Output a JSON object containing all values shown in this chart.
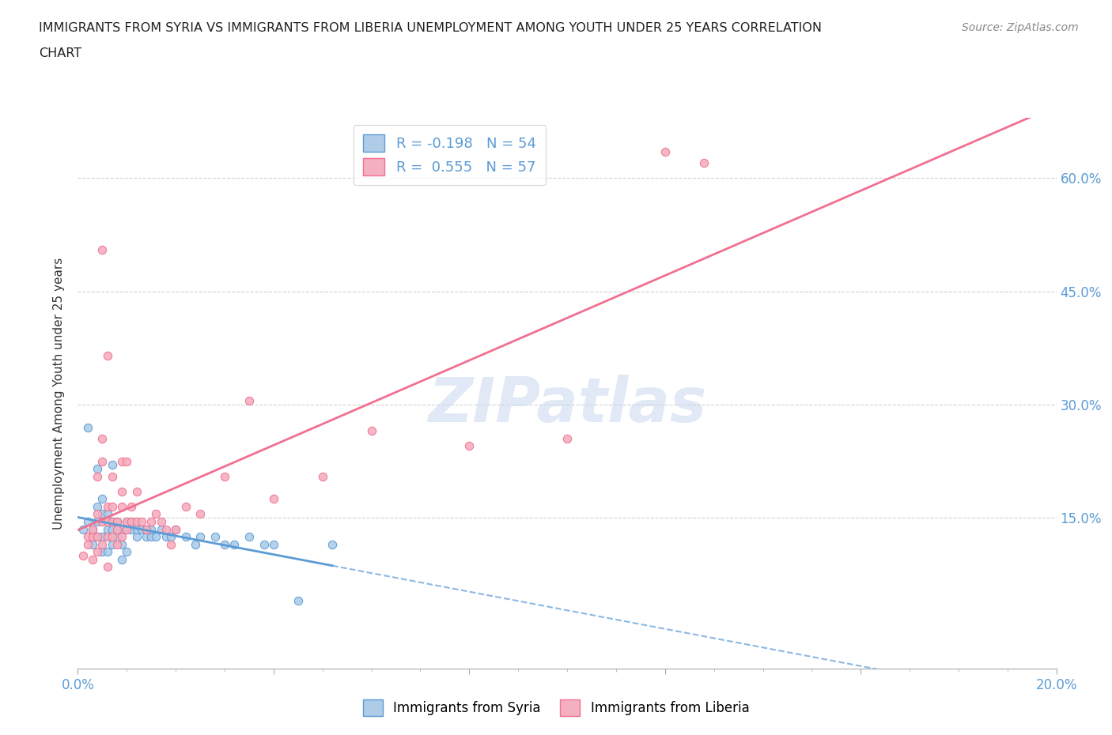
{
  "title_line1": "IMMIGRANTS FROM SYRIA VS IMMIGRANTS FROM LIBERIA UNEMPLOYMENT AMONG YOUTH UNDER 25 YEARS CORRELATION",
  "title_line2": "CHART",
  "source": "Source: ZipAtlas.com",
  "ylabel": "Unemployment Among Youth under 25 years",
  "watermark": "ZIPatlas",
  "xlim": [
    0.0,
    0.2
  ],
  "ylim": [
    -0.05,
    0.68
  ],
  "ytick_labels_right": [
    "15.0%",
    "30.0%",
    "45.0%",
    "60.0%"
  ],
  "ytick_vals_right": [
    0.15,
    0.3,
    0.45,
    0.6
  ],
  "legend_syria": "R = -0.198   N = 54",
  "legend_liberia": "R =  0.555   N = 57",
  "syria_color": "#aecce8",
  "liberia_color": "#f4b0c0",
  "syria_line_color": "#5b9bd5",
  "liberia_line_color": "#f07090",
  "syria_points": [
    [
      0.001,
      0.135
    ],
    [
      0.002,
      0.145
    ],
    [
      0.002,
      0.27
    ],
    [
      0.003,
      0.115
    ],
    [
      0.003,
      0.135
    ],
    [
      0.004,
      0.125
    ],
    [
      0.004,
      0.145
    ],
    [
      0.004,
      0.165
    ],
    [
      0.004,
      0.215
    ],
    [
      0.005,
      0.105
    ],
    [
      0.005,
      0.125
    ],
    [
      0.005,
      0.155
    ],
    [
      0.005,
      0.175
    ],
    [
      0.006,
      0.105
    ],
    [
      0.006,
      0.125
    ],
    [
      0.006,
      0.135
    ],
    [
      0.006,
      0.155
    ],
    [
      0.007,
      0.115
    ],
    [
      0.007,
      0.135
    ],
    [
      0.007,
      0.145
    ],
    [
      0.007,
      0.22
    ],
    [
      0.008,
      0.125
    ],
    [
      0.008,
      0.145
    ],
    [
      0.009,
      0.095
    ],
    [
      0.009,
      0.115
    ],
    [
      0.009,
      0.135
    ],
    [
      0.01,
      0.105
    ],
    [
      0.01,
      0.135
    ],
    [
      0.01,
      0.145
    ],
    [
      0.011,
      0.135
    ],
    [
      0.011,
      0.145
    ],
    [
      0.012,
      0.125
    ],
    [
      0.012,
      0.135
    ],
    [
      0.013,
      0.135
    ],
    [
      0.014,
      0.125
    ],
    [
      0.014,
      0.135
    ],
    [
      0.015,
      0.125
    ],
    [
      0.015,
      0.135
    ],
    [
      0.016,
      0.125
    ],
    [
      0.017,
      0.135
    ],
    [
      0.018,
      0.125
    ],
    [
      0.019,
      0.125
    ],
    [
      0.02,
      0.135
    ],
    [
      0.022,
      0.125
    ],
    [
      0.024,
      0.115
    ],
    [
      0.025,
      0.125
    ],
    [
      0.028,
      0.125
    ],
    [
      0.03,
      0.115
    ],
    [
      0.032,
      0.115
    ],
    [
      0.035,
      0.125
    ],
    [
      0.038,
      0.115
    ],
    [
      0.04,
      0.115
    ],
    [
      0.045,
      0.04
    ],
    [
      0.052,
      0.115
    ]
  ],
  "liberia_points": [
    [
      0.001,
      0.1
    ],
    [
      0.002,
      0.115
    ],
    [
      0.002,
      0.125
    ],
    [
      0.003,
      0.095
    ],
    [
      0.003,
      0.125
    ],
    [
      0.003,
      0.135
    ],
    [
      0.004,
      0.105
    ],
    [
      0.004,
      0.125
    ],
    [
      0.004,
      0.155
    ],
    [
      0.004,
      0.205
    ],
    [
      0.005,
      0.115
    ],
    [
      0.005,
      0.145
    ],
    [
      0.005,
      0.225
    ],
    [
      0.005,
      0.255
    ],
    [
      0.005,
      0.505
    ],
    [
      0.006,
      0.085
    ],
    [
      0.006,
      0.125
    ],
    [
      0.006,
      0.145
    ],
    [
      0.006,
      0.165
    ],
    [
      0.006,
      0.365
    ],
    [
      0.007,
      0.125
    ],
    [
      0.007,
      0.145
    ],
    [
      0.007,
      0.165
    ],
    [
      0.007,
      0.205
    ],
    [
      0.008,
      0.115
    ],
    [
      0.008,
      0.135
    ],
    [
      0.008,
      0.145
    ],
    [
      0.009,
      0.125
    ],
    [
      0.009,
      0.165
    ],
    [
      0.009,
      0.185
    ],
    [
      0.009,
      0.225
    ],
    [
      0.01,
      0.135
    ],
    [
      0.01,
      0.145
    ],
    [
      0.01,
      0.225
    ],
    [
      0.011,
      0.145
    ],
    [
      0.011,
      0.165
    ],
    [
      0.012,
      0.145
    ],
    [
      0.012,
      0.185
    ],
    [
      0.013,
      0.145
    ],
    [
      0.014,
      0.135
    ],
    [
      0.015,
      0.145
    ],
    [
      0.016,
      0.155
    ],
    [
      0.017,
      0.145
    ],
    [
      0.018,
      0.135
    ],
    [
      0.019,
      0.115
    ],
    [
      0.02,
      0.135
    ],
    [
      0.022,
      0.165
    ],
    [
      0.025,
      0.155
    ],
    [
      0.03,
      0.205
    ],
    [
      0.035,
      0.305
    ],
    [
      0.04,
      0.175
    ],
    [
      0.05,
      0.205
    ],
    [
      0.06,
      0.265
    ],
    [
      0.08,
      0.245
    ],
    [
      0.1,
      0.255
    ],
    [
      0.12,
      0.635
    ],
    [
      0.128,
      0.62
    ]
  ],
  "grid_color": "#d0d0d0",
  "background_color": "#ffffff"
}
